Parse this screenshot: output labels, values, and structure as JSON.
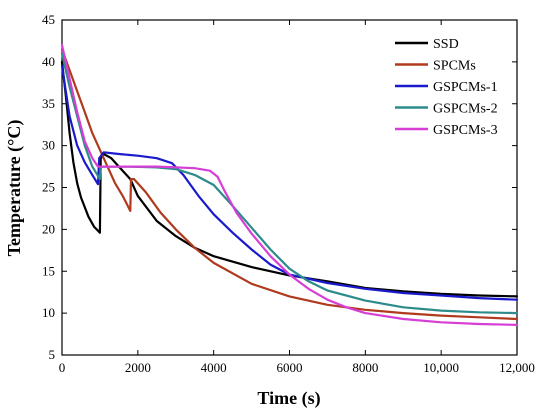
{
  "chart_data": {
    "type": "line",
    "xlabel": "Time (s)",
    "ylabel": "Temperature (°C)",
    "xlim": [
      0,
      12000
    ],
    "ylim": [
      5,
      45
    ],
    "x_ticks": [
      0,
      2000,
      4000,
      6000,
      8000,
      10000,
      12000
    ],
    "x_tick_labels": [
      "0",
      "2000",
      "4000",
      "6000",
      "8000",
      "10,000",
      "12,000"
    ],
    "y_ticks": [
      5,
      10,
      15,
      20,
      25,
      30,
      35,
      40,
      45
    ],
    "y_tick_labels": [
      "5",
      "10",
      "15",
      "20",
      "25",
      "30",
      "35",
      "40",
      "45"
    ],
    "grid": false,
    "legend_position": "top-right",
    "series": [
      {
        "name": "SSD",
        "color": "#000000",
        "points": [
          [
            0,
            40
          ],
          [
            100,
            36
          ],
          [
            200,
            31.5
          ],
          [
            300,
            28
          ],
          [
            400,
            25.5
          ],
          [
            500,
            23.8
          ],
          [
            700,
            21.5
          ],
          [
            850,
            20.3
          ],
          [
            1000,
            19.6
          ],
          [
            1020,
            28.5
          ],
          [
            1100,
            29
          ],
          [
            1300,
            28.5
          ],
          [
            1500,
            27.5
          ],
          [
            1800,
            26
          ],
          [
            2000,
            24
          ],
          [
            2500,
            21
          ],
          [
            3000,
            19.2
          ],
          [
            3500,
            17.8
          ],
          [
            4000,
            16.8
          ],
          [
            5000,
            15.5
          ],
          [
            6000,
            14.5
          ],
          [
            7000,
            13.8
          ],
          [
            8000,
            13
          ],
          [
            9000,
            12.6
          ],
          [
            10000,
            12.3
          ],
          [
            11000,
            12.1
          ],
          [
            12000,
            12
          ]
        ]
      },
      {
        "name": "SPCMs",
        "color": "#b03a1e",
        "points": [
          [
            0,
            41.5
          ],
          [
            200,
            39
          ],
          [
            400,
            36.5
          ],
          [
            600,
            34
          ],
          [
            800,
            31.5
          ],
          [
            1000,
            29.5
          ],
          [
            1200,
            27.5
          ],
          [
            1400,
            25.5
          ],
          [
            1600,
            24
          ],
          [
            1800,
            22.2
          ],
          [
            1820,
            26
          ],
          [
            1900,
            26
          ],
          [
            2200,
            24.5
          ],
          [
            2600,
            22
          ],
          [
            3000,
            20
          ],
          [
            3500,
            17.8
          ],
          [
            4000,
            16
          ],
          [
            5000,
            13.5
          ],
          [
            6000,
            12
          ],
          [
            7000,
            11
          ],
          [
            8000,
            10.4
          ],
          [
            9000,
            10
          ],
          [
            10000,
            9.7
          ],
          [
            11000,
            9.5
          ],
          [
            12000,
            9.3
          ]
        ]
      },
      {
        "name": "GSPCMs-1",
        "color": "#1a1acc",
        "points": [
          [
            0,
            39.5
          ],
          [
            100,
            36.5
          ],
          [
            200,
            33.5
          ],
          [
            400,
            30
          ],
          [
            600,
            28
          ],
          [
            800,
            26.5
          ],
          [
            950,
            25.4
          ],
          [
            980,
            28.5
          ],
          [
            1100,
            29.2
          ],
          [
            1500,
            29
          ],
          [
            2000,
            28.8
          ],
          [
            2500,
            28.5
          ],
          [
            2900,
            27.9
          ],
          [
            3200,
            26.5
          ],
          [
            3600,
            24
          ],
          [
            4000,
            21.8
          ],
          [
            4500,
            19.6
          ],
          [
            5000,
            17.6
          ],
          [
            5500,
            15.8
          ],
          [
            6000,
            14.6
          ],
          [
            7000,
            13.6
          ],
          [
            8000,
            12.9
          ],
          [
            9000,
            12.4
          ],
          [
            10000,
            12.1
          ],
          [
            11000,
            11.8
          ],
          [
            12000,
            11.6
          ]
        ]
      },
      {
        "name": "GSPCMs-2",
        "color": "#2e8b8b",
        "points": [
          [
            0,
            41
          ],
          [
            200,
            37
          ],
          [
            400,
            33.5
          ],
          [
            600,
            30
          ],
          [
            800,
            27.5
          ],
          [
            1000,
            26
          ],
          [
            1020,
            27.5
          ],
          [
            1200,
            27.5
          ],
          [
            1800,
            27.5
          ],
          [
            2500,
            27.4
          ],
          [
            3000,
            27.2
          ],
          [
            3500,
            26.5
          ],
          [
            4000,
            25.3
          ],
          [
            4500,
            22.8
          ],
          [
            5000,
            20.2
          ],
          [
            5500,
            17.6
          ],
          [
            6000,
            15.3
          ],
          [
            6500,
            13.8
          ],
          [
            7000,
            12.7
          ],
          [
            8000,
            11.5
          ],
          [
            9000,
            10.7
          ],
          [
            10000,
            10.3
          ],
          [
            11000,
            10.1
          ],
          [
            12000,
            10
          ]
        ]
      },
      {
        "name": "GSPCMs-3",
        "color": "#d63ed6",
        "points": [
          [
            0,
            42
          ],
          [
            200,
            38
          ],
          [
            400,
            34
          ],
          [
            600,
            30.5
          ],
          [
            800,
            28.5
          ],
          [
            950,
            27.5
          ],
          [
            1000,
            27.5
          ],
          [
            1500,
            27.5
          ],
          [
            2000,
            27.5
          ],
          [
            2500,
            27.5
          ],
          [
            3000,
            27.4
          ],
          [
            3500,
            27.3
          ],
          [
            3900,
            27
          ],
          [
            4100,
            26.3
          ],
          [
            4300,
            24.5
          ],
          [
            4600,
            22
          ],
          [
            5000,
            19.5
          ],
          [
            5500,
            16.8
          ],
          [
            6000,
            14.6
          ],
          [
            6500,
            12.9
          ],
          [
            7000,
            11.6
          ],
          [
            7500,
            10.7
          ],
          [
            8000,
            10
          ],
          [
            9000,
            9.3
          ],
          [
            10000,
            8.9
          ],
          [
            11000,
            8.7
          ],
          [
            12000,
            8.6
          ]
        ]
      }
    ]
  }
}
